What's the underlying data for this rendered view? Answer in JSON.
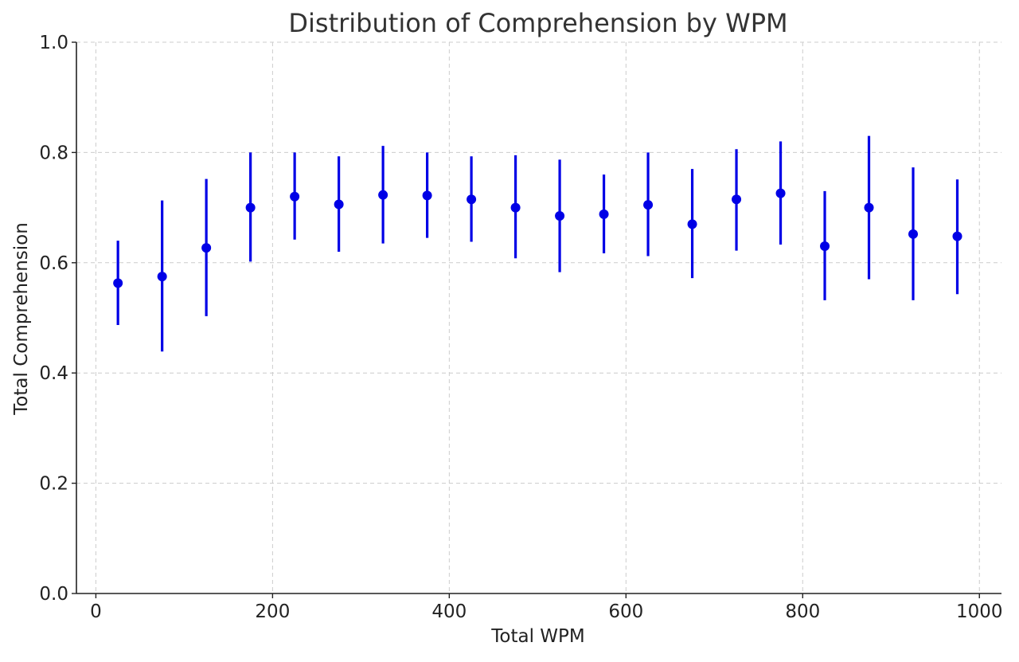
{
  "chart_data": {
    "type": "scatter",
    "title": "Distribution of Comprehension by WPM",
    "xlabel": "Total WPM",
    "ylabel": "Total Comprehension",
    "xlim": [
      -22,
      1025
    ],
    "ylim": [
      0.0,
      1.0
    ],
    "xticks": [
      0,
      200,
      400,
      600,
      800,
      1000
    ],
    "xtick_labels": [
      "0",
      "200",
      "400",
      "600",
      "800",
      "1000"
    ],
    "yticks": [
      0.0,
      0.2,
      0.4,
      0.6,
      0.8,
      1.0
    ],
    "ytick_labels": [
      "0.0",
      "0.2",
      "0.4",
      "0.6",
      "0.8",
      "1.0"
    ],
    "grid": true,
    "color": "#0000e6",
    "series": [
      {
        "x": [
          25,
          75,
          125,
          175,
          225,
          275,
          325,
          375,
          425,
          475,
          525,
          575,
          625,
          675,
          725,
          775,
          825,
          875,
          925,
          975
        ],
        "y": [
          0.563,
          0.575,
          0.627,
          0.7,
          0.72,
          0.706,
          0.723,
          0.722,
          0.715,
          0.7,
          0.685,
          0.688,
          0.705,
          0.67,
          0.715,
          0.726,
          0.63,
          0.7,
          0.652,
          0.648
        ],
        "err_low": [
          0.487,
          0.439,
          0.503,
          0.602,
          0.642,
          0.62,
          0.635,
          0.645,
          0.638,
          0.608,
          0.583,
          0.617,
          0.612,
          0.572,
          0.622,
          0.633,
          0.532,
          0.57,
          0.532,
          0.543
        ],
        "err_high": [
          0.64,
          0.713,
          0.752,
          0.8,
          0.8,
          0.793,
          0.812,
          0.8,
          0.793,
          0.795,
          0.787,
          0.76,
          0.8,
          0.77,
          0.806,
          0.82,
          0.73,
          0.83,
          0.773,
          0.751
        ]
      }
    ]
  }
}
